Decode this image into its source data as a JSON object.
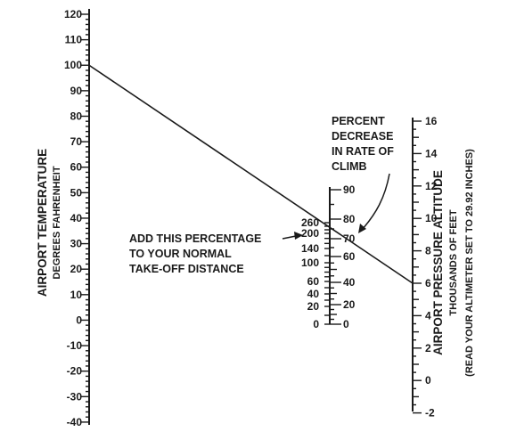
{
  "temperature_scale": {
    "title": "AIRPORT TEMPERATURE",
    "subtitle": "DEGREES FAHRENHEIT",
    "ticks": [
      "120",
      "110",
      "100",
      "90",
      "80",
      "70",
      "60",
      "50",
      "40",
      "30",
      "20",
      "10",
      "0",
      "-10",
      "-20",
      "-30",
      "-40"
    ]
  },
  "takeoff_scale": {
    "ticks": [
      "260",
      "200",
      "140",
      "100",
      "60",
      "40",
      "20",
      "0"
    ]
  },
  "climb_scale": {
    "ticks": [
      "90",
      "80",
      "70",
      "60",
      "40",
      "20",
      "0"
    ]
  },
  "altitude_scale": {
    "title": "AIRPORT PRESSURE ALTITUDE",
    "subtitle": "THOUSANDS OF FEET",
    "note": "(READ YOUR ALTIMETER SET TO 29.92 INCHES)",
    "ticks": [
      "16",
      "14",
      "12",
      "10",
      "8",
      "6",
      "4",
      "2",
      "0",
      "-2"
    ]
  },
  "annotations": {
    "climb": [
      "PERCENT",
      "DECREASE",
      "IN RATE OF",
      "CLIMB"
    ],
    "takeoff": [
      "ADD THIS PERCENTAGE",
      "TO YOUR NORMAL",
      "TAKE-OFF DISTANCE"
    ]
  },
  "example_line": {
    "temperature_f": 100,
    "pressure_altitude_thousands_ft": 6
  }
}
